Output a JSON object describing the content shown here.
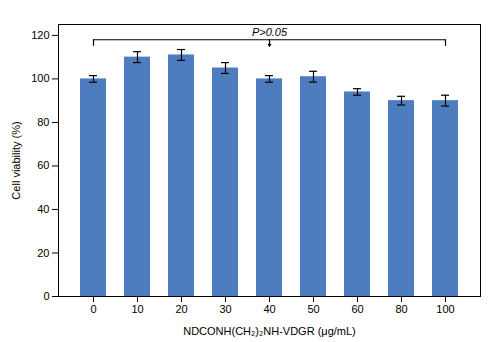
{
  "chart_data": {
    "type": "bar",
    "categories": [
      "0",
      "10",
      "20",
      "30",
      "40",
      "50",
      "60",
      "80",
      "100"
    ],
    "values": [
      100,
      110,
      111,
      105,
      100,
      101,
      94,
      90,
      90
    ],
    "errors": [
      1.5,
      2.5,
      2.5,
      2.5,
      1.5,
      2.5,
      1.5,
      2.0,
      2.5
    ],
    "color": "#4d7dbe",
    "xlabel": "NDCONH(CH₂)₂NH-VDGR (μg/mL)",
    "ylabel": "Cell viability (%)",
    "ylim": [
      0,
      125
    ],
    "yticks": [
      0,
      20,
      40,
      60,
      80,
      100,
      120
    ],
    "grid": false,
    "annotations": [
      {
        "type": "bracket",
        "text": "P>0.05",
        "from": "0",
        "to": "100",
        "y": 118,
        "drop": 3
      }
    ]
  }
}
